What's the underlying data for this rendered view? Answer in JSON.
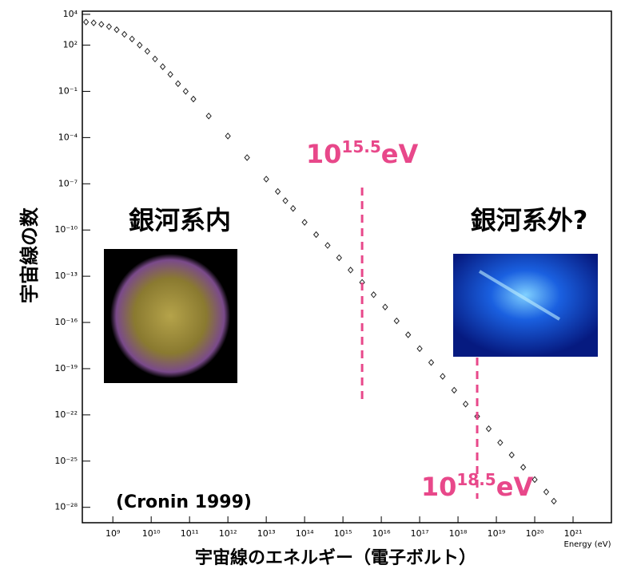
{
  "chart_data": {
    "type": "scatter",
    "xscale": "log",
    "yscale": "log",
    "x_label": "宇宙線のエネルギー（電子ボルト）",
    "x_unit_label": "Energy (eV)",
    "y_label": "宇宙線の数",
    "source": "(Cronin 1999)",
    "xlim": [
      160000000.0,
      1e+22
    ],
    "ylim": [
      1e-29,
      16000.0
    ],
    "xticks": [
      {
        "value": 1000000000.0,
        "label": "10⁹"
      },
      {
        "value": 10000000000.0,
        "label": "10¹⁰"
      },
      {
        "value": 100000000000.0,
        "label": "10¹¹"
      },
      {
        "value": 1000000000000.0,
        "label": "10¹²"
      },
      {
        "value": 10000000000000.0,
        "label": "10¹³"
      },
      {
        "value": 100000000000000.0,
        "label": "10¹⁴"
      },
      {
        "value": 1000000000000000.0,
        "label": "10¹⁵"
      },
      {
        "value": 1e+16,
        "label": "10¹⁶"
      },
      {
        "value": 1e+17,
        "label": "10¹⁷"
      },
      {
        "value": 1e+18,
        "label": "10¹⁸"
      },
      {
        "value": 1e+19,
        "label": "10¹⁹"
      },
      {
        "value": 1e+20,
        "label": "10²⁰"
      },
      {
        "value": 1e+21,
        "label": "10²¹"
      }
    ],
    "yticks": [
      {
        "value": 10000.0,
        "label": "10⁴"
      },
      {
        "value": 100.0,
        "label": "10²"
      },
      {
        "value": 0.1,
        "label": "10⁻¹"
      },
      {
        "value": 0.0001,
        "label": "10⁻⁴"
      },
      {
        "value": 1e-07,
        "label": "10⁻⁷"
      },
      {
        "value": 1e-10,
        "label": "10⁻¹⁰"
      },
      {
        "value": 1e-13,
        "label": "10⁻¹³"
      },
      {
        "value": 1e-16,
        "label": "10⁻¹⁶"
      },
      {
        "value": 1e-19,
        "label": "10⁻¹⁹"
      },
      {
        "value": 1e-22,
        "label": "10⁻²²"
      },
      {
        "value": 1e-25,
        "label": "10⁻²⁵"
      },
      {
        "value": 1e-28,
        "label": "10⁻²⁸"
      }
    ],
    "series": [
      {
        "color": "#222222",
        "x": [
          200000000.0,
          316000000.0,
          501000000.0,
          794000000.0,
          1260000000.0,
          2000000000.0,
          3160000000.0,
          5010000000.0,
          7940000000.0,
          12600000000.0,
          20000000000.0,
          31600000000.0,
          50100000000.0,
          79400000000.0,
          126000000000.0,
          316000000000.0,
          1000000000000.0,
          3160000000000.0,
          10000000000000.0,
          20000000000000.0,
          31600000000000.0,
          50100000000000.0,
          100000000000000.0,
          200000000000000.0,
          398000000000000.0,
          794000000000000.0,
          1580000000000000.0,
          3160000000000000.0,
          6310000000000000.0,
          1.26e+16,
          2.51e+16,
          5.01e+16,
          1e+17,
          2e+17,
          3.98e+17,
          7.94e+17,
          1.58e+18,
          3.16e+18,
          6.31e+18,
          1.26e+19,
          2.51e+19,
          5.01e+19,
          1e+20,
          2e+20,
          3.16e+20
        ],
        "values": [
          3160,
          2820,
          2240,
          1580,
          1000,
          501,
          251,
          100,
          39.8,
          12.6,
          3.98,
          1.26,
          0.316,
          0.1,
          0.0316,
          0.00251,
          0.000126,
          5.01e-06,
          2e-07,
          3.16e-08,
          7.94e-09,
          2.51e-09,
          3.16e-10,
          5.01e-11,
          1e-11,
          1.58e-12,
          2.51e-13,
          3.98e-14,
          6.31e-15,
          1e-15,
          1.26e-16,
          1.58e-17,
          2e-18,
          2.51e-19,
          3.16e-20,
          3.98e-21,
          5.01e-22,
          7.94e-23,
          1.26e-23,
          1.58e-24,
          2.51e-25,
          3.98e-26,
          6.31e-27,
          1e-27,
          2.51e-28
        ]
      }
    ],
    "markers": [
      {
        "x": 3160000000000000.0,
        "base": "10",
        "exponent": "15.5",
        "unit": "eV",
        "color": "#e8488a"
      },
      {
        "x": 3.16e+18,
        "base": "10",
        "exponent": "18.5",
        "unit": "eV",
        "color": "#e8488a"
      }
    ],
    "annotations": [
      {
        "text": "銀河系内"
      },
      {
        "text": "銀河系外?"
      }
    ]
  }
}
